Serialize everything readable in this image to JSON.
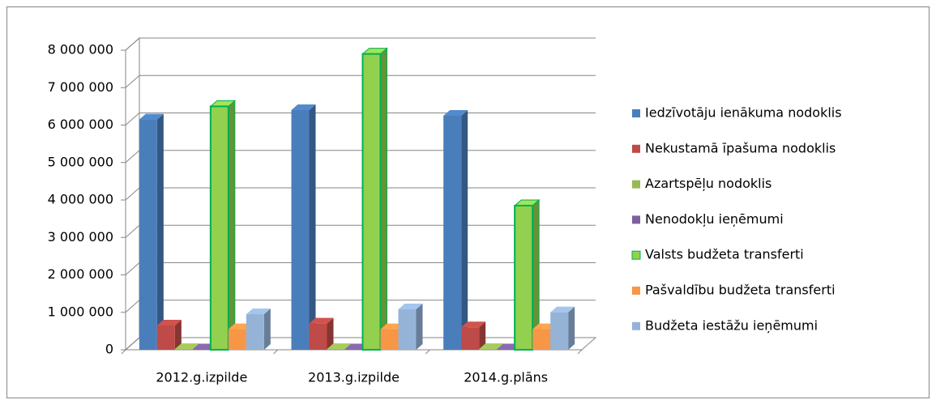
{
  "chart_data": {
    "type": "bar3d",
    "categories": [
      "2012.g.izpilde",
      "2013.g.izpilde",
      "2014.g.plāns"
    ],
    "series": [
      {
        "name": "Iedzīvotāju ienākuma nodoklis",
        "color": "#4a7ebb",
        "values": [
          6150000,
          6400000,
          6250000
        ]
      },
      {
        "name": "Nekustamā īpašuma nodoklis",
        "color": "#be4b48",
        "values": [
          650000,
          700000,
          600000
        ]
      },
      {
        "name": "Azartspēļu nodoklis",
        "color": "#98b954",
        "values": [
          20000,
          20000,
          20000
        ]
      },
      {
        "name": "Nenodokļu ieņēmumi",
        "color": "#7d60a0",
        "values": [
          10000,
          10000,
          10000
        ]
      },
      {
        "name": "Valsts budžeta transferti",
        "color": "#92d050",
        "border": "#00b050",
        "values": [
          6500000,
          7900000,
          3850000
        ]
      },
      {
        "name": "Pašvaldību budžeta transferti",
        "color": "#f79646",
        "values": [
          550000,
          550000,
          550000
        ]
      },
      {
        "name": "Budžeta iestāžu ieņēmumi",
        "color": "#95b3d7",
        "values": [
          950000,
          1080000,
          1000000
        ]
      }
    ],
    "ylim": [
      0,
      8000000
    ],
    "yticks": [
      {
        "value": 0,
        "label": "0"
      },
      {
        "value": 1000000,
        "label": "1 000 000"
      },
      {
        "value": 2000000,
        "label": "2 000 000"
      },
      {
        "value": 3000000,
        "label": "3 000 000"
      },
      {
        "value": 4000000,
        "label": "4 000 000"
      },
      {
        "value": 5000000,
        "label": "5 000 000"
      },
      {
        "value": 6000000,
        "label": "6 000 000"
      },
      {
        "value": 7000000,
        "label": "7 000 000"
      },
      {
        "value": 8000000,
        "label": "8 000 000"
      }
    ],
    "grid": true,
    "legend": "right"
  }
}
